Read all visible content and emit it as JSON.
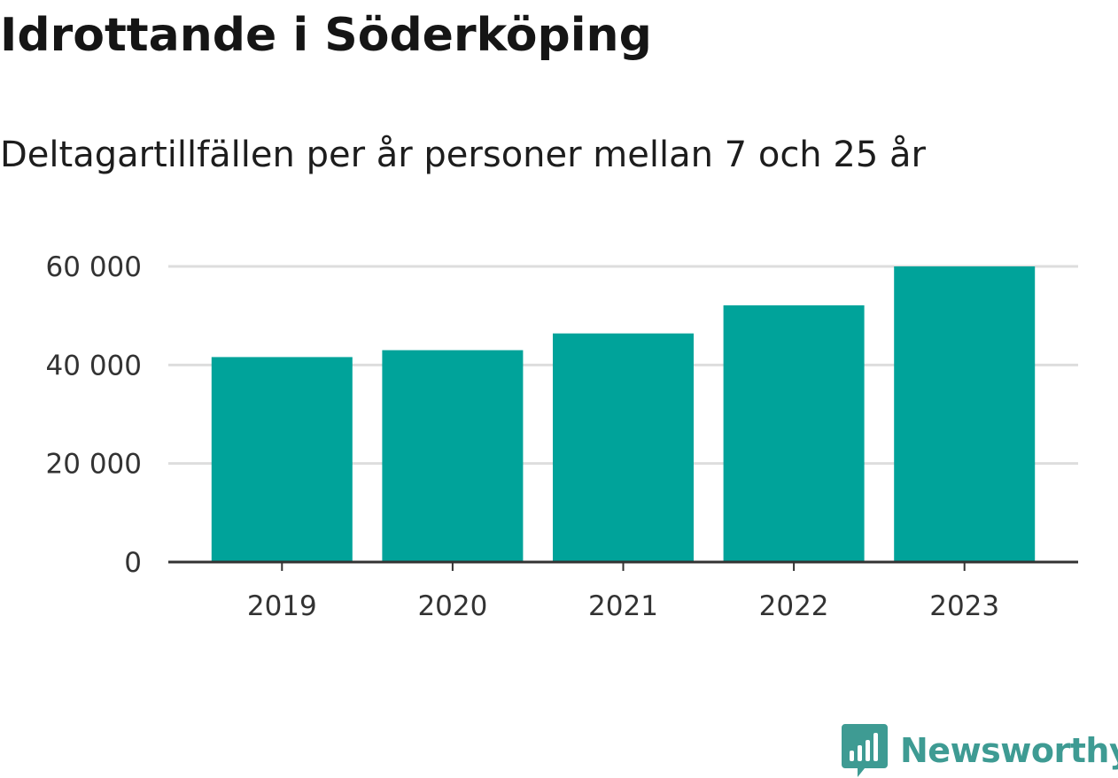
{
  "title": "Idrottande i Söderköping",
  "subtitle": "Deltagartillfällen per år personer mellan 7 och 25 år",
  "brand": {
    "name": "Newsworthy",
    "icon": "newsworthy-logo-icon"
  },
  "colors": {
    "bar": "#00a39a",
    "grid": "#dddddd",
    "axis": "#333333",
    "brand": "#3e9b93"
  },
  "chart_data": {
    "type": "bar",
    "title": "Idrottande i Söderköping",
    "subtitle": "Deltagartillfällen per år personer mellan 7 och 25 år",
    "categories": [
      "2019",
      "2020",
      "2021",
      "2022",
      "2023"
    ],
    "values": [
      41600,
      43000,
      46400,
      52100,
      60000
    ],
    "ylim": [
      0,
      60000
    ],
    "yticks": [
      0,
      20000,
      40000,
      60000
    ],
    "ytick_labels": [
      "0",
      "20 000",
      "40 000",
      "60 000"
    ],
    "grid": true,
    "legend": "none"
  }
}
